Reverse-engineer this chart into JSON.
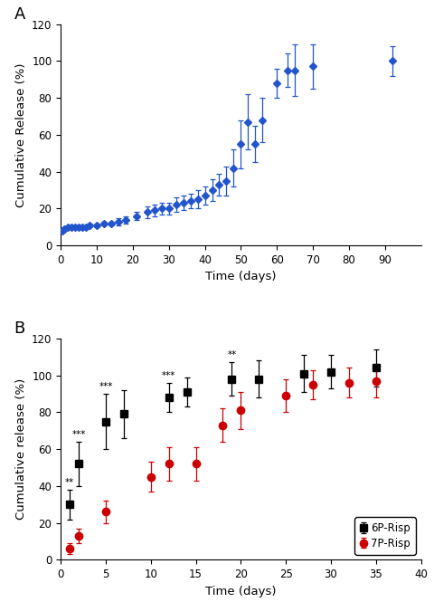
{
  "panel_A": {
    "title": "A",
    "x": [
      0.5,
      1,
      2,
      3,
      4,
      5,
      6,
      7,
      8,
      10,
      12,
      14,
      16,
      18,
      21,
      24,
      26,
      28,
      30,
      32,
      34,
      36,
      38,
      40,
      42,
      44,
      46,
      48,
      50,
      52,
      54,
      56,
      60,
      63,
      65,
      70,
      92
    ],
    "y": [
      8,
      9,
      10,
      10,
      10,
      10,
      10,
      10,
      11,
      11,
      12,
      12,
      13,
      14,
      16,
      18,
      19,
      20,
      20,
      22,
      23,
      24,
      25,
      27,
      30,
      33,
      35,
      42,
      55,
      67,
      55,
      68,
      88,
      95,
      95,
      97,
      100
    ],
    "yerr": [
      1,
      1,
      1,
      1,
      1,
      1,
      1,
      1,
      1,
      1,
      1,
      1,
      2,
      2,
      2,
      3,
      3,
      3,
      3,
      4,
      4,
      4,
      5,
      5,
      6,
      6,
      8,
      10,
      13,
      15,
      10,
      12,
      8,
      9,
      14,
      12,
      8
    ],
    "color": "#2255cc",
    "marker": "D",
    "xlabel": "Time (days)",
    "ylabel": "Cumulative Release (%)",
    "xlim": [
      0,
      100
    ],
    "ylim": [
      0,
      120
    ],
    "xticks": [
      0,
      10,
      20,
      30,
      40,
      50,
      60,
      70,
      80,
      90
    ],
    "yticks": [
      0,
      20,
      40,
      60,
      80,
      100,
      120
    ]
  },
  "panel_B": {
    "title": "B",
    "series": [
      {
        "label": "6P-Risp",
        "x": [
          1,
          2,
          5,
          7,
          12,
          14,
          19,
          22,
          27,
          30,
          35
        ],
        "y": [
          30,
          52,
          75,
          79,
          88,
          91,
          98,
          98,
          101,
          102,
          104
        ],
        "yerr": [
          8,
          12,
          15,
          13,
          8,
          8,
          9,
          10,
          10,
          9,
          10
        ],
        "color": "#000000",
        "marker": "s",
        "significance": [
          {
            "x_idx": 0,
            "text": "**"
          },
          {
            "x_idx": 1,
            "text": "***"
          },
          {
            "x_idx": 2,
            "text": "***"
          },
          {
            "x_idx": 4,
            "text": "***"
          },
          {
            "x_idx": 6,
            "text": "**"
          }
        ]
      },
      {
        "label": "7P-Risp",
        "x": [
          1,
          2,
          5,
          10,
          12,
          15,
          18,
          20,
          25,
          28,
          32,
          35
        ],
        "y": [
          6,
          13,
          26,
          45,
          52,
          52,
          73,
          81,
          89,
          95,
          96,
          97
        ],
        "yerr": [
          3,
          4,
          6,
          8,
          9,
          9,
          9,
          10,
          9,
          8,
          8,
          9
        ],
        "color": "#cc0000",
        "marker": "o"
      }
    ],
    "xlabel": "Time (days)",
    "ylabel": "Cumulative release (%)",
    "xlim": [
      0,
      40
    ],
    "ylim": [
      0,
      120
    ],
    "xticks": [
      0,
      5,
      10,
      15,
      20,
      25,
      30,
      35,
      40
    ],
    "yticks": [
      0,
      20,
      40,
      60,
      80,
      100,
      120
    ],
    "legend_loc": "lower right"
  }
}
